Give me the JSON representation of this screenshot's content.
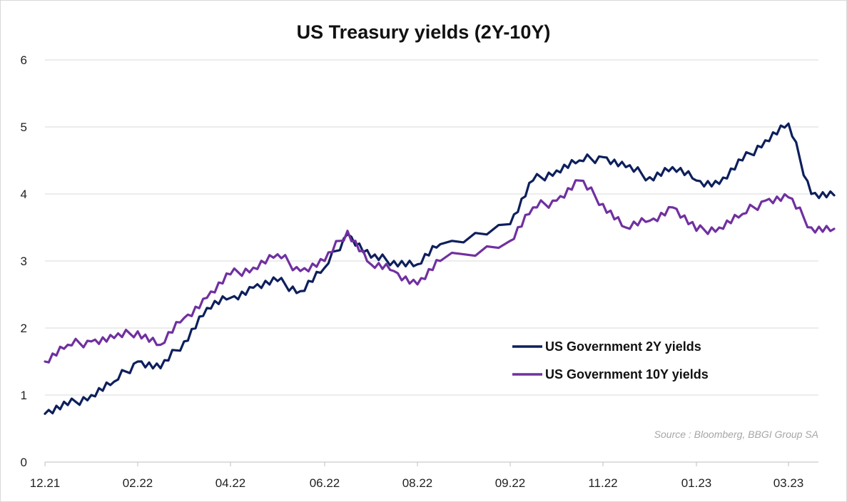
{
  "chart_data": {
    "type": "line",
    "title": "US Treasury yields (2Y-10Y)",
    "xlabel": "",
    "ylabel": "",
    "ylim": [
      0,
      6
    ],
    "yticks": [
      "0",
      "1",
      "2",
      "3",
      "4",
      "5",
      "6"
    ],
    "xticks": [
      "12.21",
      "02.22",
      "04.22",
      "06.22",
      "08.22",
      "09.22",
      "11.22",
      "01.23",
      "03.23"
    ],
    "grid": "horizontal",
    "legend_position": "right-middle",
    "source": "Source : Bloomberg, BBGI Group SA",
    "series": [
      {
        "name": "US Government 2Y yields",
        "color": "#0d1f5c",
        "points": [
          [
            "12.21",
            0.72
          ],
          [
            "12.21+",
            0.85
          ],
          [
            "01.22",
            1.0
          ],
          [
            "01.22+",
            1.2
          ],
          [
            "02.22",
            1.5
          ],
          [
            "02.22+",
            1.4
          ],
          [
            "03.22",
            1.8
          ],
          [
            "03.22+",
            2.3
          ],
          [
            "04.22",
            2.45
          ],
          [
            "04.22+",
            2.6
          ],
          [
            "05.22",
            2.7
          ],
          [
            "05.22+",
            2.55
          ],
          [
            "06.22",
            2.9
          ],
          [
            "06.22+",
            3.4
          ],
          [
            "07.22",
            3.05
          ],
          [
            "07.22+",
            3.0
          ],
          [
            "08.22",
            2.95
          ],
          [
            "08.22+",
            3.25
          ],
          [
            "09.22",
            3.55
          ],
          [
            "09.22+",
            4.2
          ],
          [
            "10.22",
            4.35
          ],
          [
            "10.22+",
            4.5
          ],
          [
            "11.22",
            4.55
          ],
          [
            "11.22+",
            4.4
          ],
          [
            "12.22",
            4.25
          ],
          [
            "12.22+",
            4.4
          ],
          [
            "01.23",
            4.2
          ],
          [
            "01.23+",
            4.15
          ],
          [
            "02.23",
            4.5
          ],
          [
            "02.23+",
            4.8
          ],
          [
            "03.23",
            5.05
          ],
          [
            "03.23+",
            4.0
          ],
          [
            "03.23++",
            3.98
          ]
        ]
      },
      {
        "name": "US Government 10Y yields",
        "color": "#7030a0",
        "points": [
          [
            "12.21",
            1.5
          ],
          [
            "12.21+",
            1.75
          ],
          [
            "01.22",
            1.8
          ],
          [
            "01.22+",
            1.85
          ],
          [
            "02.22",
            1.95
          ],
          [
            "02.22+",
            1.75
          ],
          [
            "03.22",
            2.15
          ],
          [
            "03.22+",
            2.45
          ],
          [
            "04.22",
            2.8
          ],
          [
            "04.22+",
            2.9
          ],
          [
            "05.22",
            3.1
          ],
          [
            "05.22+",
            2.85
          ],
          [
            "06.22",
            3.0
          ],
          [
            "06.22+",
            3.45
          ],
          [
            "07.22",
            2.95
          ],
          [
            "07.22+",
            2.85
          ],
          [
            "08.22",
            2.65
          ],
          [
            "08.22+",
            3.0
          ],
          [
            "09.22",
            3.3
          ],
          [
            "09.22+",
            3.8
          ],
          [
            "10.22",
            3.9
          ],
          [
            "10.22+",
            4.2
          ],
          [
            "11.22",
            3.85
          ],
          [
            "11.22+",
            3.5
          ],
          [
            "12.22",
            3.6
          ],
          [
            "12.22+",
            3.8
          ],
          [
            "01.23",
            3.45
          ],
          [
            "01.23+",
            3.5
          ],
          [
            "02.23",
            3.7
          ],
          [
            "02.23+",
            3.9
          ],
          [
            "03.23",
            3.95
          ],
          [
            "03.23+",
            3.5
          ],
          [
            "03.23++",
            3.48
          ]
        ]
      }
    ]
  }
}
